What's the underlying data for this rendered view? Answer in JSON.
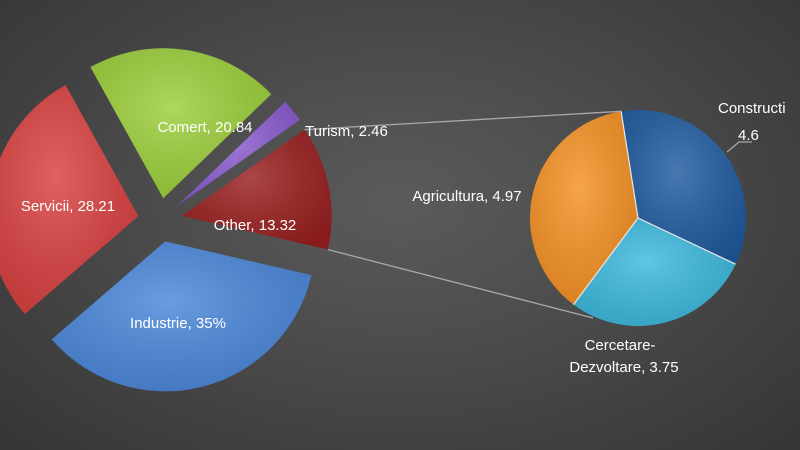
{
  "chart_data": {
    "type": "pie",
    "subtype": "bar-of-pie",
    "main_pie": {
      "slices": [
        {
          "name": "Industrie",
          "value": 35,
          "label": "Industrie, 35%",
          "color": "#4a86d9"
        },
        {
          "name": "Servicii",
          "value": 28.21,
          "label": "Servicii, 28.21",
          "color": "#d93f3f"
        },
        {
          "name": "Comert",
          "value": 20.84,
          "label": "Comert, 20.84",
          "color": "#9ccf3a"
        },
        {
          "name": "Turism",
          "value": 2.46,
          "label": "Turism, 2.46",
          "color": "#8a5bd0"
        },
        {
          "name": "Other",
          "value": 13.32,
          "label": "Other, 13.32",
          "color": "#9a1f1f"
        }
      ]
    },
    "secondary_pie": {
      "slices": [
        {
          "name": "Constructii",
          "value": 4.6,
          "label_lines": [
            "Constructi",
            "4.6"
          ],
          "color": "#1f5ba0"
        },
        {
          "name": "Cercetare-Dezvoltare",
          "value": 3.75,
          "label_lines": [
            "Cercetare-",
            "Dezvoltare, 3.75"
          ],
          "color": "#3cb9de"
        },
        {
          "name": "Agricultura",
          "value": 4.97,
          "label_lines": [
            "Agricultura, 4.97"
          ],
          "color": "#f59123"
        }
      ]
    },
    "legend": "none",
    "title": ""
  }
}
